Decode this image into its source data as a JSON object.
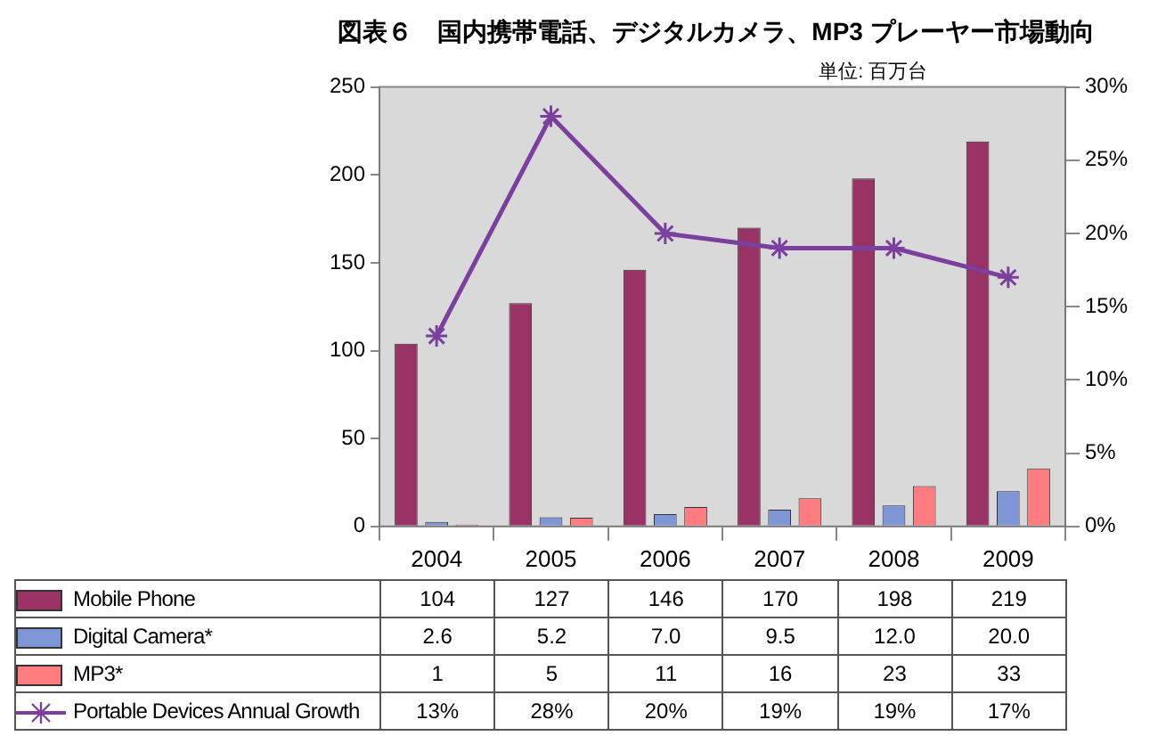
{
  "chart_data": {
    "type": "bar",
    "title": "図表６　国内携帯電話、デジタルカメラ、MP3 プレーヤー市場動向",
    "annotations": [
      "単位: 百万台"
    ],
    "categories": [
      "2004",
      "2005",
      "2006",
      "2007",
      "2008",
      "2009"
    ],
    "series": [
      {
        "name": "Mobile Phone",
        "color": "#993366",
        "values": [
          104,
          127,
          146,
          170,
          198,
          219
        ],
        "value_labels": [
          "104",
          "127",
          "146",
          "170",
          "198",
          "219"
        ]
      },
      {
        "name": "Digital Camera*",
        "color": "#7f96d6",
        "values": [
          2.6,
          5.2,
          7.0,
          9.5,
          12.0,
          20.0
        ],
        "value_labels": [
          "2.6",
          "5.2",
          "7.0",
          "9.5",
          "12.0",
          "20.0"
        ]
      },
      {
        "name": "MP3*",
        "color": "#ff7c80",
        "values": [
          1,
          5,
          11,
          16,
          23,
          33
        ],
        "value_labels": [
          "1",
          "5",
          "11",
          "16",
          "23",
          "33"
        ]
      },
      {
        "name": "Portable Devices Annual Growth",
        "type": "line",
        "axis": "y2",
        "color": "#7b3f9e",
        "marker": "cross",
        "values": [
          13,
          28,
          20,
          19,
          19,
          17
        ],
        "value_labels": [
          "13%",
          "28%",
          "20%",
          "19%",
          "19%",
          "17%"
        ]
      }
    ],
    "ylim": [
      0,
      250
    ],
    "yticks": [
      0,
      50,
      100,
      150,
      200,
      250
    ],
    "y2lim": [
      0,
      30
    ],
    "y2ticks": [
      {
        "value": 0,
        "label": "0%"
      },
      {
        "value": 5,
        "label": "5%"
      },
      {
        "value": 10,
        "label": "10%"
      },
      {
        "value": 15,
        "label": "15%"
      },
      {
        "value": 20,
        "label": "20%"
      },
      {
        "value": 25,
        "label": "25%"
      },
      {
        "value": 30,
        "label": "30%"
      }
    ],
    "grid": false,
    "legend": "bottom"
  }
}
